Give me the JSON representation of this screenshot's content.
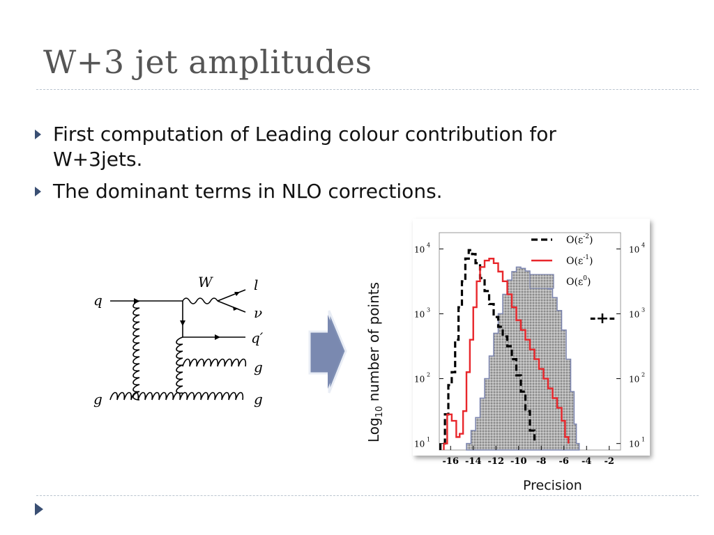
{
  "slide": {
    "title": "W+3 jet amplitudes",
    "bullets": [
      "First computation of Leading colour contribution for W+3jets.",
      "The dominant terms in NLO corrections."
    ]
  },
  "diagram": {
    "labels": {
      "q": "q",
      "W": "W",
      "l": "l",
      "nu": "ν",
      "qprime": "q′",
      "g1": "g",
      "g2": "g",
      "g3": "g"
    }
  },
  "chart_data": {
    "type": "line",
    "xlabel_prefix": "Log",
    "xlabel_sub": "10",
    "ylabel_suffix": " number of points",
    "xlabel": "Precision",
    "x_ticks": [
      "-16",
      "-14",
      "-12",
      "-10",
      "-8",
      "-6",
      "-4",
      "-2"
    ],
    "y_ticks_left": [
      "10",
      "10",
      "10",
      "10"
    ],
    "y_tick_exponents": [
      "4",
      "3",
      "2",
      "1"
    ],
    "y_scale": "log",
    "xlim": [
      -17,
      -1
    ],
    "ylim_exp": [
      0.9,
      4.25
    ],
    "legend_position": "top-right",
    "annotation": "-+-",
    "series": [
      {
        "name": "O(ε-2)",
        "label_base": "O(ε",
        "label_exp": "-2",
        "style": "dashed",
        "color": "#000000",
        "points": [
          [
            -16.9,
            1.0
          ],
          [
            -16.5,
            1.45
          ],
          [
            -16.2,
            1.9
          ],
          [
            -15.9,
            2.1
          ],
          [
            -15.6,
            2.6
          ],
          [
            -15.3,
            3.1
          ],
          [
            -15.0,
            3.5
          ],
          [
            -14.7,
            3.85
          ],
          [
            -14.4,
            3.98
          ],
          [
            -14.1,
            3.92
          ],
          [
            -13.8,
            3.78
          ],
          [
            -13.4,
            3.55
          ],
          [
            -13.0,
            3.35
          ],
          [
            -12.6,
            3.15
          ],
          [
            -12.2,
            2.95
          ],
          [
            -11.8,
            2.8
          ],
          [
            -11.4,
            2.65
          ],
          [
            -11.0,
            2.5
          ],
          [
            -10.6,
            2.3
          ],
          [
            -10.2,
            2.05
          ],
          [
            -9.8,
            1.8
          ],
          [
            -9.4,
            1.5
          ],
          [
            -9.0,
            1.2
          ],
          [
            -8.6,
            1.0
          ]
        ]
      },
      {
        "name": "O(ε-1)",
        "label_base": "O(ε",
        "label_exp": "-1",
        "style": "solid",
        "color": "#e8262b",
        "points": [
          [
            -16.6,
            1.0
          ],
          [
            -16.3,
            1.45
          ],
          [
            -15.9,
            1.35
          ],
          [
            -15.5,
            1.1
          ],
          [
            -15.2,
            1.15
          ],
          [
            -14.9,
            1.5
          ],
          [
            -14.6,
            2.1
          ],
          [
            -14.3,
            2.6
          ],
          [
            -14.0,
            3.1
          ],
          [
            -13.7,
            3.5
          ],
          [
            -13.4,
            3.72
          ],
          [
            -13.0,
            3.82
          ],
          [
            -12.6,
            3.85
          ],
          [
            -12.2,
            3.78
          ],
          [
            -11.8,
            3.65
          ],
          [
            -11.4,
            3.5
          ],
          [
            -11.0,
            3.3
          ],
          [
            -10.6,
            3.1
          ],
          [
            -10.2,
            2.9
          ],
          [
            -9.8,
            2.75
          ],
          [
            -9.4,
            2.6
          ],
          [
            -9.0,
            2.45
          ],
          [
            -8.6,
            2.3
          ],
          [
            -8.2,
            2.15
          ],
          [
            -7.8,
            2.0
          ],
          [
            -7.4,
            1.85
          ],
          [
            -7.0,
            1.7
          ],
          [
            -6.6,
            1.55
          ],
          [
            -6.2,
            1.35
          ],
          [
            -5.9,
            1.1
          ],
          [
            -5.6,
            1.0
          ]
        ]
      },
      {
        "name": "O(ε0)",
        "label_base": "O(ε",
        "label_exp": "0",
        "style": "filled",
        "color": "#9a9a9a",
        "points": [
          [
            -14.6,
            1.0
          ],
          [
            -14.2,
            1.2
          ],
          [
            -13.8,
            1.4
          ],
          [
            -13.4,
            1.7
          ],
          [
            -13.0,
            2.0
          ],
          [
            -12.6,
            2.35
          ],
          [
            -12.2,
            2.7
          ],
          [
            -11.8,
            3.0
          ],
          [
            -11.4,
            3.3
          ],
          [
            -11.0,
            3.52
          ],
          [
            -10.6,
            3.65
          ],
          [
            -10.2,
            3.72
          ],
          [
            -9.8,
            3.7
          ],
          [
            -9.4,
            3.66
          ],
          [
            -9.0,
            3.6
          ],
          [
            -8.6,
            3.55
          ],
          [
            -8.2,
            3.5
          ],
          [
            -7.8,
            3.45
          ],
          [
            -7.4,
            3.38
          ],
          [
            -7.0,
            3.25
          ],
          [
            -6.6,
            3.05
          ],
          [
            -6.2,
            2.75
          ],
          [
            -5.8,
            2.3
          ],
          [
            -5.4,
            1.8
          ],
          [
            -5.1,
            1.3
          ],
          [
            -4.9,
            1.0
          ]
        ]
      }
    ]
  }
}
